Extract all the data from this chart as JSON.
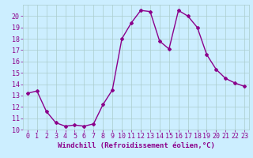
{
  "x": [
    0,
    1,
    2,
    3,
    4,
    5,
    6,
    7,
    8,
    9,
    10,
    11,
    12,
    13,
    14,
    15,
    16,
    17,
    18,
    19,
    20,
    21,
    22,
    23
  ],
  "y": [
    13.2,
    13.4,
    11.6,
    10.6,
    10.3,
    10.4,
    10.3,
    10.5,
    12.2,
    13.5,
    18.0,
    19.4,
    20.5,
    20.4,
    17.8,
    17.1,
    20.5,
    20.0,
    19.0,
    16.6,
    15.3,
    14.5,
    14.1,
    13.8
  ],
  "line_color": "#8b008b",
  "marker": "D",
  "marker_size": 2,
  "xlabel": "Windchill (Refroidissement éolien,°C)",
  "xlim": [
    -0.5,
    23.5
  ],
  "ylim": [
    10,
    21.0
  ],
  "yticks": [
    10,
    11,
    12,
    13,
    14,
    15,
    16,
    17,
    18,
    19,
    20
  ],
  "xticks": [
    0,
    1,
    2,
    3,
    4,
    5,
    6,
    7,
    8,
    9,
    10,
    11,
    12,
    13,
    14,
    15,
    16,
    17,
    18,
    19,
    20,
    21,
    22,
    23
  ],
  "bg_color": "#cceeff",
  "grid_color": "#aacccc",
  "xlabel_fontsize": 6.5,
  "tick_fontsize": 6,
  "line_width": 1.0
}
